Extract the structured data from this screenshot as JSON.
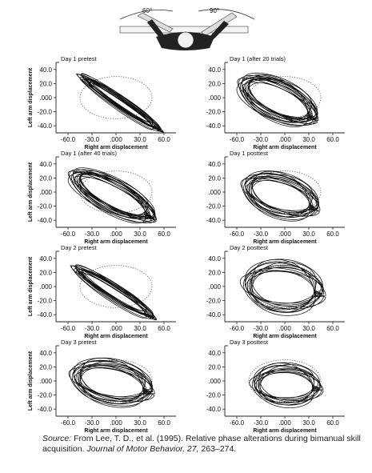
{
  "figure": {
    "angle_left": "60°",
    "angle_right": "90°"
  },
  "caption": {
    "source_label": "Source:",
    "text_before_journal": " From Lee, T. D., et al. (1995). Relative phase alterations during bimanual skill acquisition. ",
    "journal": "Journal of Motor Behavior, 27,",
    "text_after_journal": " 263–274."
  },
  "chart_data": [
    {
      "type": "line",
      "title": "Day 1 pretest",
      "xlabel": "Right arm displacement",
      "ylabel": "Left arm displacement",
      "xlim": [
        -75,
        75
      ],
      "ylim": [
        -50,
        50
      ],
      "xticks": [
        "-60.0",
        "-30.0",
        ".000",
        "30.0",
        "60.0"
      ],
      "yticks": [
        "40.0",
        "20.0",
        ".000",
        "-20.0",
        "-40.0"
      ],
      "target_ellipse": {
        "center": [
          0,
          0
        ],
        "radii": [
          45,
          30
        ]
      },
      "trace": {
        "center": [
          5,
          -7
        ],
        "major_radius": 57,
        "minor_radius": 6,
        "angle_deg": -38,
        "cycles": 14
      },
      "grid": false
    },
    {
      "type": "line",
      "title": "Day 1 (after 20 trials)",
      "xlabel": "Right arm displacement",
      "ylabel": "",
      "xlim": [
        -75,
        75
      ],
      "ylim": [
        -50,
        50
      ],
      "xticks": [
        "-60.0",
        "-30.0",
        ".000",
        "30.0",
        "60.0"
      ],
      "yticks": [
        "40.0",
        "20.0",
        ".000",
        "-20.0",
        "-40.0"
      ],
      "target_ellipse": {
        "center": [
          0,
          0
        ],
        "radii": [
          45,
          30
        ]
      },
      "trace": {
        "center": [
          -8,
          -3
        ],
        "major_radius": 48,
        "minor_radius": 22,
        "angle_deg": -30,
        "cycles": 16
      },
      "grid": false
    },
    {
      "type": "line",
      "title": "Day 1 (after 40 trials)",
      "xlabel": "Right arm displacement",
      "ylabel": "Left arm displacement",
      "xlim": [
        -75,
        75
      ],
      "ylim": [
        -50,
        50
      ],
      "xticks": [
        "-60.0",
        "-30.0",
        ".000",
        "30.0",
        "60.0"
      ],
      "yticks": [
        "40.0",
        "20.0",
        ".000",
        "-20.0",
        "-40.0"
      ],
      "target_ellipse": {
        "center": [
          0,
          0
        ],
        "radii": [
          45,
          30
        ]
      },
      "trace": {
        "center": [
          -4,
          -5
        ],
        "major_radius": 54,
        "minor_radius": 18,
        "angle_deg": -32,
        "cycles": 16
      },
      "grid": false
    },
    {
      "type": "line",
      "title": "Day 1 posttest",
      "xlabel": "Right arm displacement",
      "ylabel": "",
      "xlim": [
        -75,
        75
      ],
      "ylim": [
        -50,
        50
      ],
      "xticks": [
        "-60.0",
        "-30.0",
        ".000",
        "30.0",
        "60.0"
      ],
      "yticks": [
        "40.0",
        "20.0",
        ".000",
        "-20.0",
        "-40.0"
      ],
      "target_ellipse": {
        "center": [
          0,
          0
        ],
        "radii": [
          45,
          30
        ]
      },
      "trace": {
        "center": [
          -5,
          -5
        ],
        "major_radius": 44,
        "minor_radius": 24,
        "angle_deg": -22,
        "cycles": 14
      },
      "grid": false
    },
    {
      "type": "line",
      "title": "Day 2 pretest",
      "xlabel": "Right arm displacement",
      "ylabel": "Left arm displacement",
      "xlim": [
        -75,
        75
      ],
      "ylim": [
        -50,
        50
      ],
      "xticks": [
        "-60.0",
        "-30.0",
        ".000",
        "30.0",
        "60.0"
      ],
      "yticks": [
        "40.0",
        "20.0",
        ".000",
        "-20.0",
        "-40.0"
      ],
      "target_ellipse": {
        "center": [
          0,
          0
        ],
        "radii": [
          45,
          30
        ]
      },
      "trace": {
        "center": [
          -3,
          -8
        ],
        "major_radius": 55,
        "minor_radius": 8,
        "angle_deg": -36,
        "cycles": 14
      },
      "grid": false
    },
    {
      "type": "line",
      "title": "Day 2 posttest",
      "xlabel": "Right arm displacement",
      "ylabel": "",
      "xlim": [
        -75,
        75
      ],
      "ylim": [
        -50,
        50
      ],
      "xticks": [
        "-60.0",
        "-30.0",
        ".000",
        "30.0",
        "60.0"
      ],
      "yticks": [
        "40.0",
        "20.0",
        ".000",
        "-20.0",
        "-40.0"
      ],
      "target_ellipse": {
        "center": [
          0,
          0
        ],
        "radii": [
          45,
          30
        ]
      },
      "trace": {
        "center": [
          -2,
          -1
        ],
        "major_radius": 45,
        "minor_radius": 30,
        "angle_deg": -10,
        "cycles": 12
      },
      "grid": false
    },
    {
      "type": "line",
      "title": "Day 3 pretest",
      "xlabel": "Right arm displacement",
      "ylabel": "Left arm displacement",
      "xlim": [
        -75,
        75
      ],
      "ylim": [
        -50,
        50
      ],
      "xticks": [
        "-60.0",
        "-30.0",
        ".000",
        "30.0",
        "60.0"
      ],
      "yticks": [
        "40.0",
        "20.0",
        ".000",
        "-20.0",
        "-40.0"
      ],
      "target_ellipse": {
        "center": [
          0,
          0
        ],
        "radii": [
          45,
          30
        ]
      },
      "trace": {
        "center": [
          -5,
          -2
        ],
        "major_radius": 46,
        "minor_radius": 25,
        "angle_deg": -15,
        "cycles": 14
      },
      "grid": false
    },
    {
      "type": "line",
      "title": "Day 3 posttest",
      "xlabel": "Right arm displacement",
      "ylabel": "",
      "xlim": [
        -75,
        75
      ],
      "ylim": [
        -50,
        50
      ],
      "xticks": [
        "-60.0",
        "-30.0",
        ".000",
        "30.0",
        "60.0"
      ],
      "yticks": [
        "40.0",
        "20.0",
        ".000",
        "-20.0",
        "-40.0"
      ],
      "target_ellipse": {
        "center": [
          0,
          0
        ],
        "radii": [
          45,
          30
        ]
      },
      "trace": {
        "center": [
          2,
          -6
        ],
        "major_radius": 38,
        "minor_radius": 24,
        "angle_deg": -5,
        "cycles": 12
      },
      "grid": false
    }
  ]
}
